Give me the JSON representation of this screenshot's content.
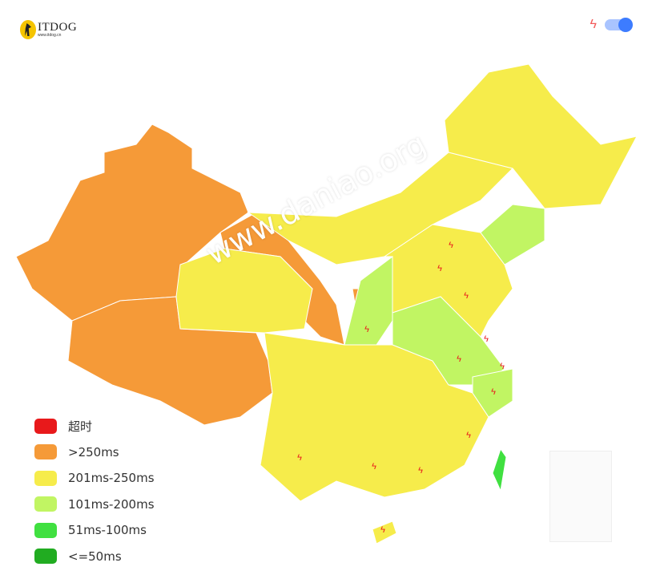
{
  "logo": {
    "name": "ITDOG",
    "url": "www.itdog.cn"
  },
  "toolbar": {
    "bolt_icon": "lightning-icon",
    "toggle_on": true
  },
  "watermark": "www.daniao.org",
  "colors": {
    "timeout": "#e8191b",
    "gt250": "#f59a38",
    "r201_250": "#f6ec4b",
    "r101_200": "#c1f563",
    "r51_100": "#40e040",
    "le50": "#21ac21",
    "bolt": "#f35b5b",
    "toggle": "#3d7cff"
  },
  "legend": [
    {
      "label": "超时",
      "color": "#e8191b"
    },
    {
      "label": ">250ms",
      "color": "#f59a38"
    },
    {
      "label": "201ms-250ms",
      "color": "#f6ec4b"
    },
    {
      "label": "101ms-200ms",
      "color": "#c1f563"
    },
    {
      "label": "51ms-100ms",
      "color": "#40e040"
    },
    {
      "label": "<=50ms",
      "color": "#21ac21"
    }
  ],
  "regions": [
    {
      "name": "xinjiang",
      "level": ">250ms"
    },
    {
      "name": "tibet",
      "level": ">250ms"
    },
    {
      "name": "gansu",
      "level": ">250ms"
    },
    {
      "name": "ningxia",
      "level": ">250ms"
    },
    {
      "name": "qinghai",
      "level": "201ms-250ms"
    },
    {
      "name": "inner-mongolia",
      "level": "201ms-250ms"
    },
    {
      "name": "northeast",
      "level": "201ms-250ms"
    },
    {
      "name": "north-china",
      "level": "201ms-250ms"
    },
    {
      "name": "south-china",
      "level": "201ms-250ms"
    },
    {
      "name": "hainan",
      "level": "201ms-250ms"
    },
    {
      "name": "liaoning",
      "level": "101ms-200ms"
    },
    {
      "name": "shaanxi",
      "level": "101ms-200ms"
    },
    {
      "name": "central-east",
      "level": "101ms-200ms"
    },
    {
      "name": "zhejiang",
      "level": "101ms-200ms"
    },
    {
      "name": "taiwan",
      "level": "51ms-100ms"
    }
  ]
}
